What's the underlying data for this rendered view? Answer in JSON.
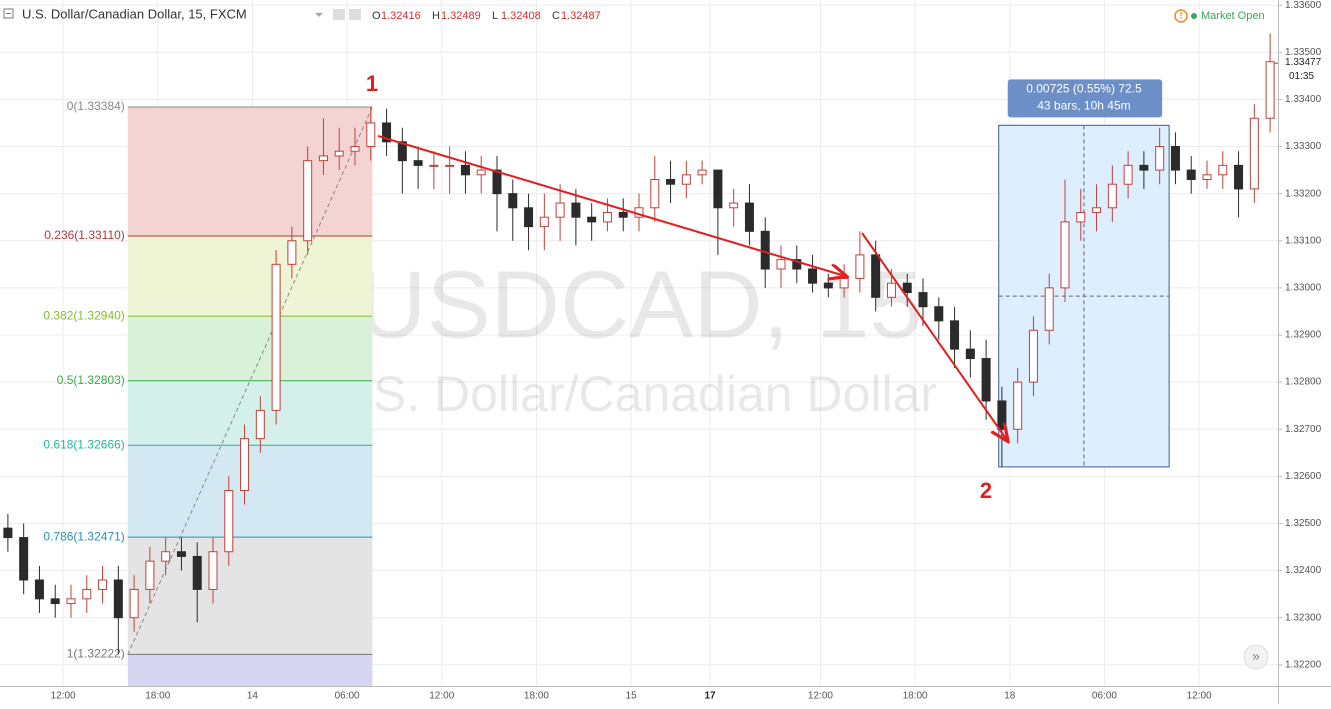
{
  "chart_data": {
    "type": "candlestick",
    "title": "U.S. Dollar/Canadian Dollar, 15, FXCM",
    "ohlc_legend": [
      {
        "key": "O",
        "value": 1.32416
      },
      {
        "key": "H",
        "value": 1.32489
      },
      {
        "key": "L",
        "value": 1.32408
      },
      {
        "key": "C",
        "value": 1.32487
      }
    ],
    "status": "Market Open",
    "watermark": "USDCAD, 15",
    "watermark_subtitle": "U.S. Dollar/Canadian Dollar",
    "open": [
      1.3249,
      1.3247,
      1.3238,
      1.3234,
      1.3233,
      1.3234,
      1.3236,
      1.3238,
      1.323,
      1.3236,
      1.3242,
      1.3244,
      1.3243,
      1.3236,
      1.3244,
      1.3257,
      1.3268,
      1.3274,
      1.3305,
      1.331,
      1.3327,
      1.3328,
      1.3329,
      1.333,
      1.3335,
      1.3331,
      1.3327,
      1.3326,
      1.3326,
      1.3326,
      1.3324,
      1.3325,
      1.332,
      1.3317,
      1.3313,
      1.3315,
      1.3318,
      1.3315,
      1.3314,
      1.3316,
      1.3315,
      1.3317,
      1.3323,
      1.3322,
      1.3324,
      1.3325,
      1.3317,
      1.3318,
      1.3312,
      1.3304,
      1.3306,
      1.3304,
      1.3301,
      1.33,
      1.3302,
      1.3307,
      1.3298,
      1.3301,
      1.3299,
      1.3296,
      1.3293,
      1.3287,
      1.3285,
      1.3276,
      1.327,
      1.328,
      1.3291,
      1.33,
      1.3314,
      1.3316,
      1.3317,
      1.3322,
      1.3326,
      1.3325,
      1.333,
      1.3325,
      1.3323,
      1.3324,
      1.3326,
      1.3321,
      1.3336
    ],
    "high": [
      1.3252,
      1.325,
      1.3241,
      1.3237,
      1.3237,
      1.3239,
      1.3241,
      1.3241,
      1.3239,
      1.3245,
      1.3247,
      1.3247,
      1.3246,
      1.3247,
      1.326,
      1.3271,
      1.3277,
      1.3308,
      1.3313,
      1.333,
      1.3336,
      1.3334,
      1.3334,
      1.33384,
      1.3338,
      1.3334,
      1.333,
      1.3329,
      1.333,
      1.3329,
      1.3328,
      1.3328,
      1.3323,
      1.332,
      1.332,
      1.3322,
      1.3321,
      1.3318,
      1.3319,
      1.3319,
      1.332,
      1.3328,
      1.3327,
      1.3327,
      1.3327,
      1.3325,
      1.3321,
      1.3322,
      1.3315,
      1.3309,
      1.3309,
      1.3307,
      1.3303,
      1.3305,
      1.3312,
      1.331,
      1.3304,
      1.3303,
      1.3302,
      1.3298,
      1.3296,
      1.3291,
      1.3289,
      1.3279,
      1.3283,
      1.3294,
      1.3303,
      1.3323,
      1.3321,
      1.3322,
      1.3326,
      1.3329,
      1.3329,
      1.3334,
      1.3333,
      1.3328,
      1.3327,
      1.3329,
      1.3329,
      1.3339,
      1.3354
    ],
    "low": [
      1.3244,
      1.3235,
      1.3231,
      1.323,
      1.323,
      1.3231,
      1.3233,
      1.32222,
      1.3227,
      1.3233,
      1.3239,
      1.324,
      1.3229,
      1.3233,
      1.3241,
      1.3254,
      1.3265,
      1.3271,
      1.3302,
      1.3307,
      1.3324,
      1.3325,
      1.3326,
      1.3327,
      1.3328,
      1.332,
      1.3321,
      1.3321,
      1.332,
      1.332,
      1.332,
      1.3312,
      1.331,
      1.3308,
      1.3308,
      1.331,
      1.3309,
      1.331,
      1.3312,
      1.3312,
      1.3312,
      1.3314,
      1.3318,
      1.3319,
      1.3322,
      1.3307,
      1.3313,
      1.3309,
      1.33,
      1.33,
      1.3301,
      1.3299,
      1.3298,
      1.3298,
      1.3299,
      1.3295,
      1.3296,
      1.3296,
      1.3292,
      1.3289,
      1.3283,
      1.3281,
      1.3272,
      1.3262,
      1.3267,
      1.3277,
      1.3288,
      1.3297,
      1.331,
      1.3312,
      1.3314,
      1.3319,
      1.3321,
      1.3322,
      1.3322,
      1.332,
      1.3321,
      1.3321,
      1.3315,
      1.3318,
      1.3333
    ],
    "close": [
      1.3247,
      1.3238,
      1.3234,
      1.3233,
      1.3234,
      1.3236,
      1.3238,
      1.323,
      1.3236,
      1.3242,
      1.3244,
      1.3243,
      1.3236,
      1.3244,
      1.3257,
      1.3268,
      1.3274,
      1.3305,
      1.331,
      1.3327,
      1.3328,
      1.3329,
      1.333,
      1.3335,
      1.3331,
      1.3327,
      1.3326,
      1.3326,
      1.3326,
      1.3324,
      1.3325,
      1.332,
      1.3317,
      1.3313,
      1.3315,
      1.3318,
      1.3315,
      1.3314,
      1.3316,
      1.3315,
      1.3317,
      1.3323,
      1.3322,
      1.3324,
      1.3325,
      1.3317,
      1.3318,
      1.3312,
      1.3304,
      1.3306,
      1.3304,
      1.3301,
      1.33,
      1.3302,
      1.3307,
      1.3298,
      1.3301,
      1.3299,
      1.3296,
      1.3293,
      1.3287,
      1.3285,
      1.3276,
      1.327,
      1.328,
      1.3291,
      1.33,
      1.3314,
      1.3316,
      1.3317,
      1.3322,
      1.3326,
      1.3325,
      1.333,
      1.3325,
      1.3323,
      1.3324,
      1.3326,
      1.3321,
      1.3336,
      1.3348
    ],
    "up_color": "#ffffff",
    "up_border": "#c2403a",
    "down_color": "#2b2b2b",
    "xlim": [
      -0.5,
      80.5
    ],
    "xticks": [
      {
        "value": 3.5,
        "label": "12:00"
      },
      {
        "value": 9.5,
        "label": "18:00"
      },
      {
        "value": 15.5,
        "label": "14"
      },
      {
        "value": 21.5,
        "label": "06:00"
      },
      {
        "value": 27.5,
        "label": "12:00"
      },
      {
        "value": 33.5,
        "label": "18:00"
      },
      {
        "value": 39.5,
        "label": "15"
      },
      {
        "value": 44.5,
        "label": "17",
        "bold": true
      },
      {
        "value": 51.5,
        "label": "12:00"
      },
      {
        "value": 57.5,
        "label": "18:00"
      },
      {
        "value": 63.5,
        "label": "18"
      },
      {
        "value": 69.5,
        "label": "06:00"
      },
      {
        "value": 75.5,
        "label": "12:00"
      }
    ],
    "ylim": [
      1.32155,
      1.33611
    ],
    "yticks": [
      {
        "value": 1.322,
        "label": "1.32200"
      },
      {
        "value": 1.323,
        "label": "1.32300"
      },
      {
        "value": 1.324,
        "label": "1.32400"
      },
      {
        "value": 1.325,
        "label": "1.32500"
      },
      {
        "value": 1.326,
        "label": "1.32600"
      },
      {
        "value": 1.327,
        "label": "1.32700"
      },
      {
        "value": 1.328,
        "label": "1.32800"
      },
      {
        "value": 1.329,
        "label": "1.32900"
      },
      {
        "value": 1.33,
        "label": "1.33000"
      },
      {
        "value": 1.331,
        "label": "1.33100"
      },
      {
        "value": 1.332,
        "label": "1.33200"
      },
      {
        "value": 1.333,
        "label": "1.33300"
      },
      {
        "value": 1.334,
        "label": "1.33400"
      },
      {
        "value": 1.335,
        "label": "1.33500"
      },
      {
        "value": 1.336,
        "label": "1.33600"
      }
    ],
    "grid": true,
    "last_price": {
      "value": 1.33477,
      "label": "1.33477"
    },
    "countdown": "01:35",
    "fibonacci": {
      "start": 7.6,
      "end": 23.1,
      "levels": [
        {
          "label": "0(1.33384)",
          "value": 1.33384,
          "color": "#888888",
          "fill": "#f4d3d3"
        },
        {
          "label": "0.236(1.33110)",
          "value": 1.3311,
          "color": "#b23a3a",
          "fill": "#eef4d4"
        },
        {
          "label": "0.382(1.32940)",
          "value": 1.3294,
          "color": "#8ab82e",
          "fill": "#d8f1d8"
        },
        {
          "label": "0.5(1.32803)",
          "value": 1.32803,
          "color": "#3aa84a",
          "fill": "#d4f0ea"
        },
        {
          "label": "0.618(1.32666)",
          "value": 1.32666,
          "color": "#26b59a",
          "fill": "#d3e8f3"
        },
        {
          "label": "0.786(1.32471)",
          "value": 1.32471,
          "color": "#2a8fb8",
          "fill": "#e4e4e4"
        },
        {
          "label": "1(1.32222)",
          "value": 1.32222,
          "color": "#777777",
          "fill": "#d6d6f3"
        }
      ]
    },
    "measure": {
      "start": 62.8,
      "end": 73.6,
      "from": 1.3262,
      "to": 1.33345,
      "lines": [
        "0.00725 (0.55%) 72.5",
        "43 bars, 10h 45m"
      ]
    },
    "annotations": [
      "1",
      "2"
    ]
  }
}
